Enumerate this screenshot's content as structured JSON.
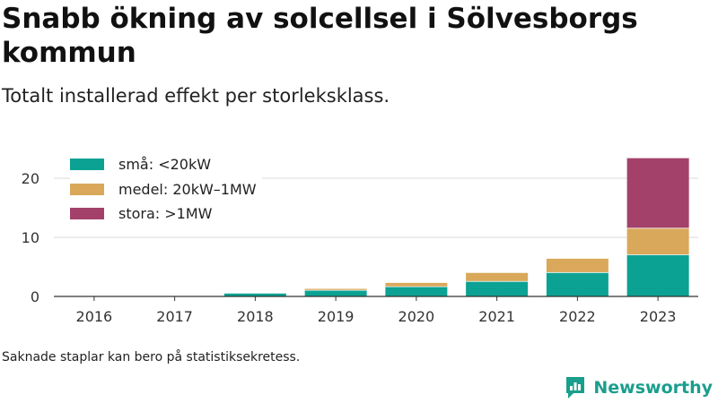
{
  "header": {
    "title": "Snabb ökning av solcellsel i Sölvesborgs kommun",
    "subtitle": "Totalt installerad effekt per storleksklass."
  },
  "footnote": "Saknade staplar kan bero på statistiksekretess.",
  "brand": {
    "name": "Newsworthy",
    "icon": "newsworthy-logo-icon",
    "color": "#1a9e8d"
  },
  "chart_data": {
    "type": "bar",
    "stacked": true,
    "title": "Snabb ökning av solcellsel i Sölvesborgs kommun",
    "subtitle": "Totalt installerad effekt per storleksklass.",
    "xlabel": "",
    "ylabel": "",
    "categories": [
      "2016",
      "2017",
      "2018",
      "2019",
      "2020",
      "2021",
      "2022",
      "2023"
    ],
    "ylim": [
      0,
      24
    ],
    "yticks": [
      0,
      10,
      20
    ],
    "grid": true,
    "legend_position": "top-left",
    "series": [
      {
        "name": "små: <20kW",
        "color": "#0ca293",
        "values": [
          0,
          0,
          0.6,
          1.1,
          1.7,
          2.6,
          4.1,
          7.1
        ]
      },
      {
        "name": "medel: 20kW–1MW",
        "color": "#d9a85a",
        "values": [
          0,
          0,
          0,
          0.3,
          0.7,
          1.5,
          2.4,
          4.5
        ]
      },
      {
        "name": "stora: >1MW",
        "color": "#a3416a",
        "values": [
          0,
          0,
          0,
          0,
          0,
          0,
          0,
          11.9
        ]
      }
    ]
  }
}
